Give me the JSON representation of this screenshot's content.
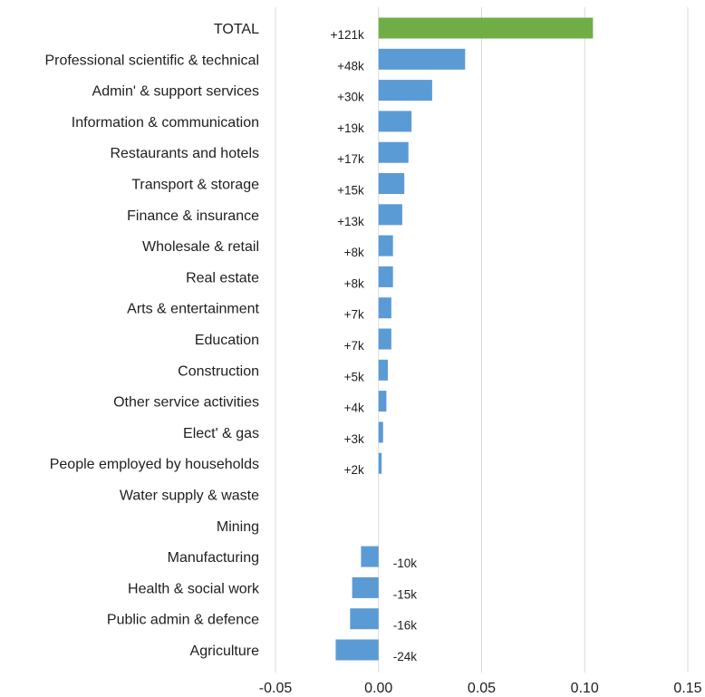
{
  "chart_data": {
    "type": "bar",
    "orientation": "horizontal",
    "title": "",
    "xlabel": "",
    "ylabel": "",
    "xlim": [
      -0.05,
      0.15
    ],
    "x_ticks": [
      -0.05,
      0,
      0.05,
      0.1,
      0.15
    ],
    "x_tick_labels": [
      "-0.05",
      "0.00",
      "0.05",
      "0.10",
      "0.15"
    ],
    "grid": "vertical",
    "legend": "none",
    "colors": {
      "highlight": "#70ad47",
      "default": "#5b9bd5"
    },
    "categories": [
      "TOTAL",
      "Professional scientific & technical",
      "Admin' & support services",
      "Information & communication",
      "Restaurants and hotels",
      "Transport & storage",
      "Finance & insurance",
      "Wholesale & retail",
      "Real estate",
      "Arts & entertainment",
      "Education",
      "Construction",
      "Other service activities",
      "Elect' & gas",
      "People employed by households",
      "Water supply & waste",
      "Mining",
      "Manufacturing",
      "Health & social work",
      "Public admin & defence",
      "Agriculture"
    ],
    "values": [
      0.104,
      0.042,
      0.026,
      0.016,
      0.0145,
      0.0125,
      0.0115,
      0.007,
      0.007,
      0.0062,
      0.0062,
      0.0045,
      0.0038,
      0.0022,
      0.0015,
      0,
      0,
      -0.0085,
      -0.0128,
      -0.0138,
      -0.0208
    ],
    "data_labels": [
      "+121k",
      "+48k",
      "+30k",
      "+19k",
      "+17k",
      "+15k",
      "+13k",
      "+8k",
      "+8k",
      "+7k",
      "+7k",
      "+5k",
      "+4k",
      "+3k",
      "+2k",
      "",
      "",
      "-10k",
      "-15k",
      "-16k",
      "-24k"
    ],
    "highlight_index": 0
  }
}
